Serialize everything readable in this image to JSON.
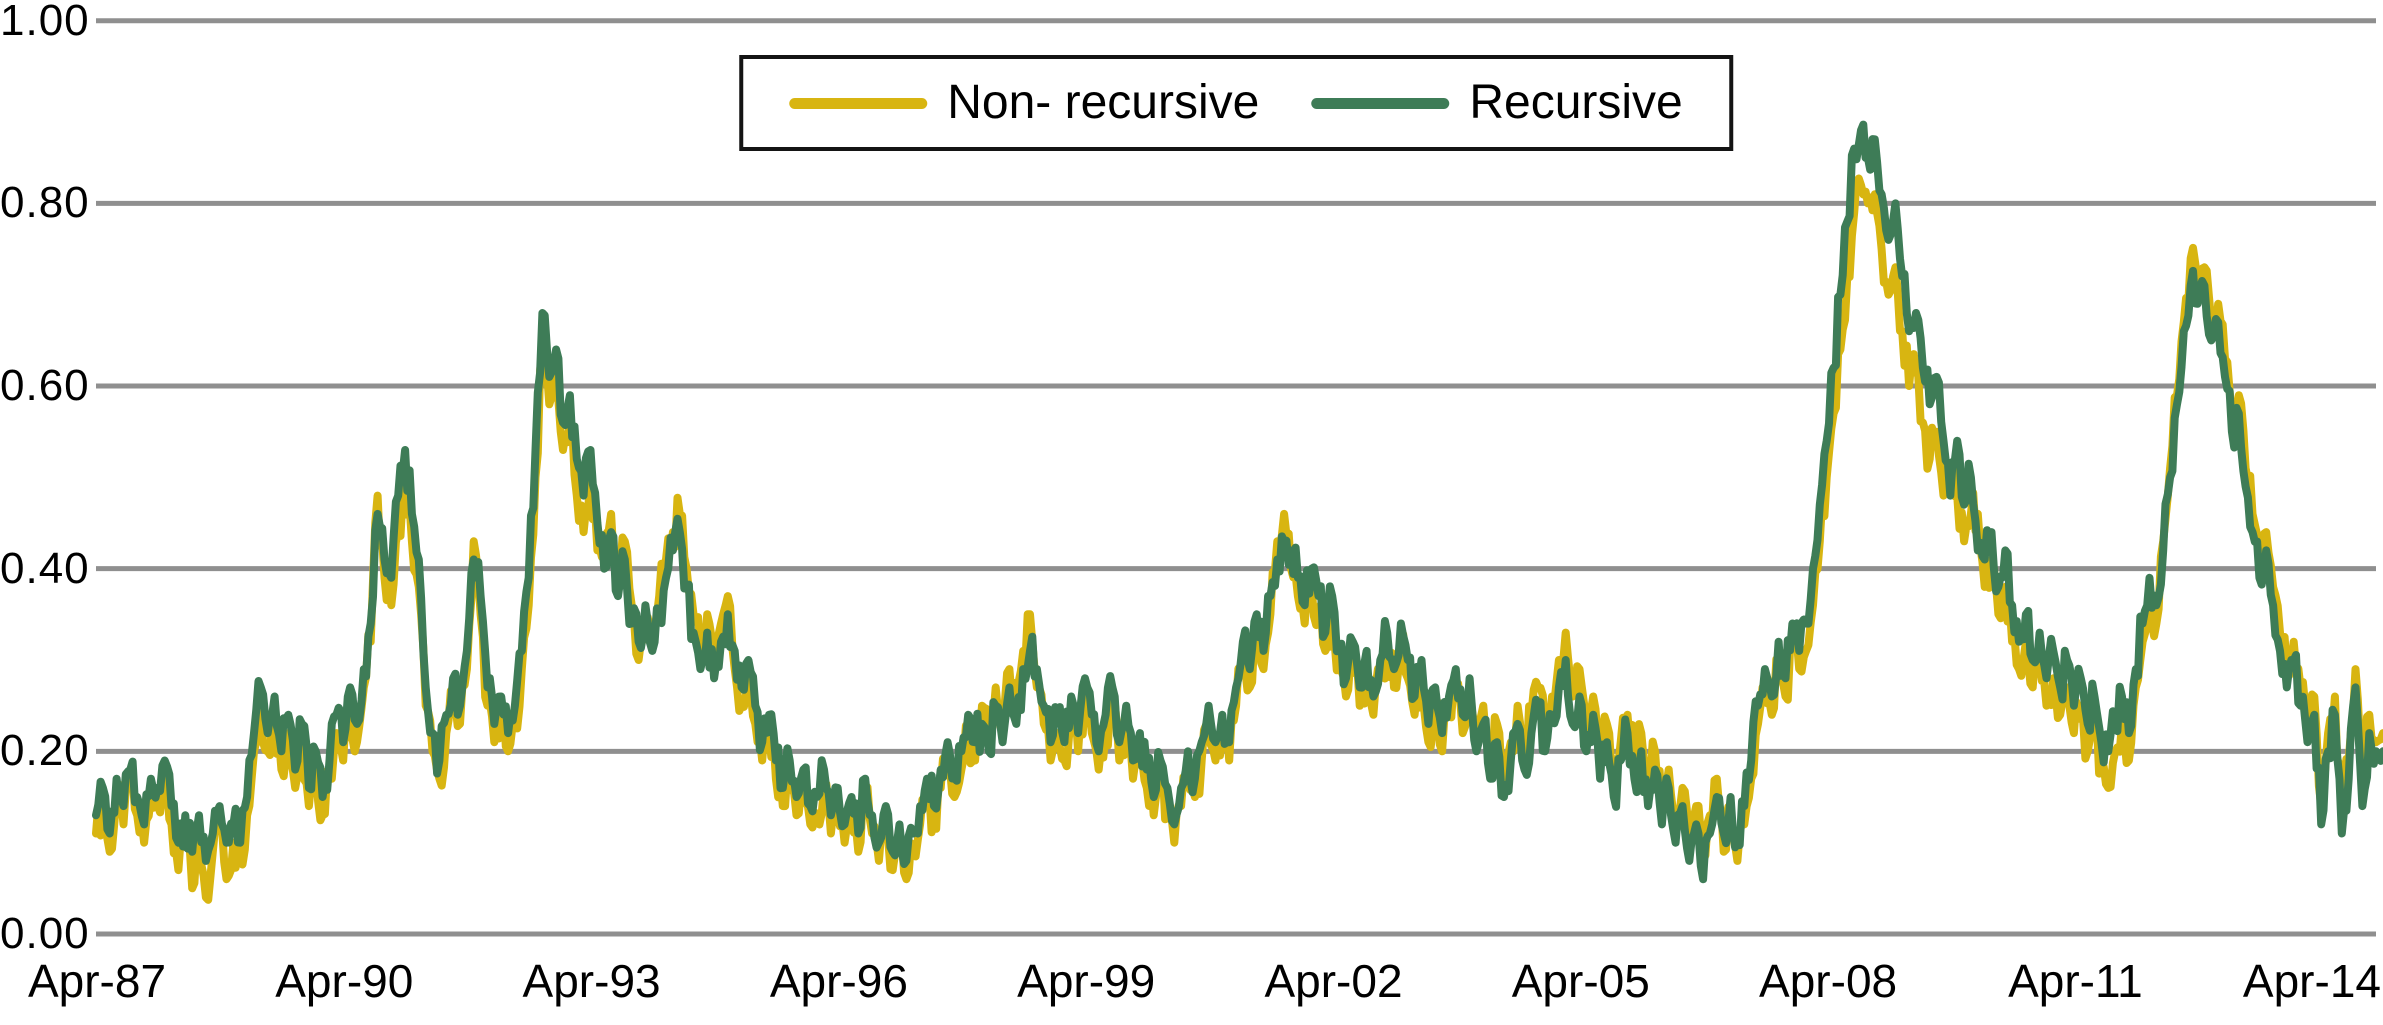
{
  "chart_data": {
    "type": "line",
    "background_color": "#ffffff",
    "grid": "horizontal",
    "grid_color": "#8f8f8f",
    "ylim": [
      0.0,
      1.0
    ],
    "y_tick_labels": [
      "1.00",
      "0.80",
      "0.60",
      "0.40",
      "0.20",
      "0.00"
    ],
    "x_tick_labels": [
      "Apr-87",
      "Apr-90",
      "Apr-93",
      "Apr-96",
      "Apr-99",
      "Apr-02",
      "Apr-05",
      "Apr-08",
      "Apr-11",
      "Apr-14"
    ],
    "x_months": {
      "start": "Apr-1987",
      "end": "Jan-2015",
      "step_months": 1
    },
    "legend": {
      "position": "top-center",
      "border_color": "#141414"
    },
    "series": [
      {
        "name": "Non- recursive",
        "color": "#d8b511",
        "values": [
          0.11,
          0.14,
          0.09,
          0.15,
          0.12,
          0.16,
          0.13,
          0.1,
          0.15,
          0.14,
          0.17,
          0.12,
          0.07,
          0.11,
          0.05,
          0.11,
          0.04,
          0.09,
          0.12,
          0.06,
          0.1,
          0.08,
          0.13,
          0.2,
          0.25,
          0.2,
          0.24,
          0.18,
          0.22,
          0.16,
          0.21,
          0.14,
          0.18,
          0.13,
          0.17,
          0.22,
          0.19,
          0.25,
          0.21,
          0.27,
          0.32,
          0.48,
          0.39,
          0.36,
          0.44,
          0.5,
          0.43,
          0.38,
          0.25,
          0.2,
          0.17,
          0.22,
          0.26,
          0.23,
          0.29,
          0.43,
          0.35,
          0.25,
          0.21,
          0.24,
          0.2,
          0.23,
          0.29,
          0.36,
          0.5,
          0.64,
          0.58,
          0.61,
          0.53,
          0.56,
          0.48,
          0.44,
          0.5,
          0.42,
          0.41,
          0.46,
          0.39,
          0.43,
          0.36,
          0.3,
          0.34,
          0.33,
          0.37,
          0.41,
          0.44,
          0.46,
          0.4,
          0.35,
          0.31,
          0.35,
          0.3,
          0.34,
          0.37,
          0.29,
          0.25,
          0.28,
          0.23,
          0.19,
          0.22,
          0.17,
          0.14,
          0.17,
          0.13,
          0.16,
          0.12,
          0.13,
          0.16,
          0.11,
          0.14,
          0.1,
          0.13,
          0.09,
          0.15,
          0.11,
          0.08,
          0.12,
          0.07,
          0.1,
          0.06,
          0.09,
          0.12,
          0.15,
          0.12,
          0.16,
          0.19,
          0.15,
          0.18,
          0.22,
          0.19,
          0.25,
          0.22,
          0.27,
          0.23,
          0.29,
          0.25,
          0.31,
          0.35,
          0.27,
          0.23,
          0.19,
          0.22,
          0.19,
          0.24,
          0.2,
          0.26,
          0.22,
          0.18,
          0.22,
          0.25,
          0.19,
          0.23,
          0.17,
          0.2,
          0.16,
          0.13,
          0.17,
          0.14,
          0.1,
          0.14,
          0.18,
          0.15,
          0.19,
          0.23,
          0.19,
          0.22,
          0.19,
          0.25,
          0.3,
          0.27,
          0.33,
          0.29,
          0.35,
          0.43,
          0.46,
          0.4,
          0.37,
          0.34,
          0.38,
          0.35,
          0.31,
          0.35,
          0.29,
          0.26,
          0.3,
          0.25,
          0.29,
          0.24,
          0.28,
          0.31,
          0.27,
          0.32,
          0.28,
          0.24,
          0.28,
          0.21,
          0.25,
          0.2,
          0.24,
          0.27,
          0.22,
          0.26,
          0.22,
          0.25,
          0.19,
          0.23,
          0.17,
          0.21,
          0.25,
          0.2,
          0.24,
          0.27,
          0.22,
          0.26,
          0.3,
          0.33,
          0.26,
          0.29,
          0.22,
          0.26,
          0.19,
          0.23,
          0.17,
          0.21,
          0.24,
          0.19,
          0.22,
          0.16,
          0.2,
          0.14,
          0.18,
          0.12,
          0.16,
          0.1,
          0.14,
          0.08,
          0.13,
          0.17,
          0.09,
          0.13,
          0.08,
          0.12,
          0.17,
          0.23,
          0.27,
          0.24,
          0.3,
          0.26,
          0.32,
          0.29,
          0.31,
          0.36,
          0.43,
          0.5,
          0.57,
          0.64,
          0.72,
          0.79,
          0.82,
          0.8,
          0.81,
          0.75,
          0.7,
          0.73,
          0.66,
          0.6,
          0.62,
          0.56,
          0.52,
          0.55,
          0.48,
          0.5,
          0.48,
          0.43,
          0.46,
          0.46,
          0.38,
          0.41,
          0.35,
          0.38,
          0.32,
          0.29,
          0.32,
          0.27,
          0.3,
          0.25,
          0.28,
          0.24,
          0.27,
          0.22,
          0.25,
          0.2,
          0.23,
          0.18,
          0.16,
          0.2,
          0.23,
          0.19,
          0.27,
          0.32,
          0.37,
          0.34,
          0.43,
          0.51,
          0.59,
          0.67,
          0.74,
          0.71,
          0.73,
          0.67,
          0.69,
          0.63,
          0.57,
          0.59,
          0.51,
          0.46,
          0.41,
          0.44,
          0.38,
          0.33,
          0.29,
          0.32,
          0.27,
          0.23,
          0.26,
          0.14,
          0.22,
          0.26,
          0.13,
          0.19,
          0.29,
          0.16,
          0.24,
          0.21,
          0.22
        ]
      },
      {
        "name": "Recursive",
        "color": "#3e7c57",
        "values": [
          0.13,
          0.16,
          0.11,
          0.17,
          0.14,
          0.18,
          0.15,
          0.12,
          0.17,
          0.16,
          0.19,
          0.14,
          0.1,
          0.13,
          0.09,
          0.13,
          0.08,
          0.11,
          0.14,
          0.1,
          0.12,
          0.1,
          0.15,
          0.22,
          0.27,
          0.22,
          0.26,
          0.2,
          0.24,
          0.18,
          0.23,
          0.16,
          0.2,
          0.15,
          0.19,
          0.24,
          0.21,
          0.27,
          0.23,
          0.29,
          0.34,
          0.46,
          0.41,
          0.39,
          0.48,
          0.53,
          0.46,
          0.41,
          0.27,
          0.22,
          0.19,
          0.24,
          0.28,
          0.25,
          0.31,
          0.41,
          0.37,
          0.27,
          0.23,
          0.26,
          0.22,
          0.25,
          0.31,
          0.39,
          0.53,
          0.68,
          0.61,
          0.64,
          0.56,
          0.59,
          0.52,
          0.48,
          0.53,
          0.45,
          0.4,
          0.44,
          0.37,
          0.41,
          0.34,
          0.32,
          0.36,
          0.31,
          0.35,
          0.39,
          0.42,
          0.44,
          0.38,
          0.33,
          0.29,
          0.33,
          0.28,
          0.32,
          0.35,
          0.31,
          0.27,
          0.3,
          0.25,
          0.21,
          0.24,
          0.19,
          0.16,
          0.19,
          0.15,
          0.18,
          0.14,
          0.15,
          0.18,
          0.13,
          0.16,
          0.12,
          0.15,
          0.11,
          0.17,
          0.13,
          0.1,
          0.14,
          0.09,
          0.12,
          0.08,
          0.11,
          0.14,
          0.17,
          0.14,
          0.18,
          0.21,
          0.17,
          0.2,
          0.24,
          0.21,
          0.23,
          0.2,
          0.25,
          0.21,
          0.27,
          0.23,
          0.29,
          0.31,
          0.29,
          0.25,
          0.21,
          0.24,
          0.21,
          0.26,
          0.22,
          0.28,
          0.24,
          0.2,
          0.24,
          0.27,
          0.21,
          0.25,
          0.19,
          0.22,
          0.18,
          0.15,
          0.19,
          0.16,
          0.12,
          0.16,
          0.2,
          0.17,
          0.21,
          0.25,
          0.21,
          0.24,
          0.21,
          0.27,
          0.32,
          0.29,
          0.35,
          0.31,
          0.37,
          0.41,
          0.43,
          0.42,
          0.39,
          0.36,
          0.4,
          0.37,
          0.33,
          0.37,
          0.31,
          0.28,
          0.32,
          0.27,
          0.31,
          0.26,
          0.3,
          0.33,
          0.29,
          0.34,
          0.3,
          0.26,
          0.3,
          0.23,
          0.27,
          0.22,
          0.26,
          0.29,
          0.24,
          0.28,
          0.2,
          0.23,
          0.17,
          0.21,
          0.15,
          0.19,
          0.23,
          0.18,
          0.22,
          0.25,
          0.2,
          0.24,
          0.27,
          0.3,
          0.23,
          0.26,
          0.2,
          0.24,
          0.17,
          0.21,
          0.15,
          0.19,
          0.22,
          0.17,
          0.2,
          0.14,
          0.18,
          0.12,
          0.16,
          0.1,
          0.14,
          0.08,
          0.12,
          0.06,
          0.11,
          0.15,
          0.11,
          0.15,
          0.1,
          0.14,
          0.19,
          0.25,
          0.29,
          0.26,
          0.32,
          0.28,
          0.34,
          0.31,
          0.34,
          0.4,
          0.47,
          0.54,
          0.62,
          0.7,
          0.78,
          0.86,
          0.88,
          0.85,
          0.87,
          0.81,
          0.76,
          0.8,
          0.72,
          0.66,
          0.68,
          0.62,
          0.58,
          0.61,
          0.54,
          0.48,
          0.54,
          0.47,
          0.5,
          0.42,
          0.41,
          0.44,
          0.38,
          0.42,
          0.36,
          0.32,
          0.35,
          0.3,
          0.33,
          0.28,
          0.31,
          0.27,
          0.3,
          0.25,
          0.28,
          0.23,
          0.26,
          0.21,
          0.2,
          0.23,
          0.26,
          0.22,
          0.29,
          0.34,
          0.39,
          0.36,
          0.42,
          0.5,
          0.58,
          0.66,
          0.71,
          0.69,
          0.71,
          0.65,
          0.67,
          0.61,
          0.55,
          0.57,
          0.49,
          0.44,
          0.39,
          0.42,
          0.36,
          0.31,
          0.27,
          0.3,
          0.25,
          0.21,
          0.24,
          0.12,
          0.2,
          0.24,
          0.11,
          0.17,
          0.27,
          0.14,
          0.22,
          0.2,
          0.2
        ]
      }
    ]
  }
}
